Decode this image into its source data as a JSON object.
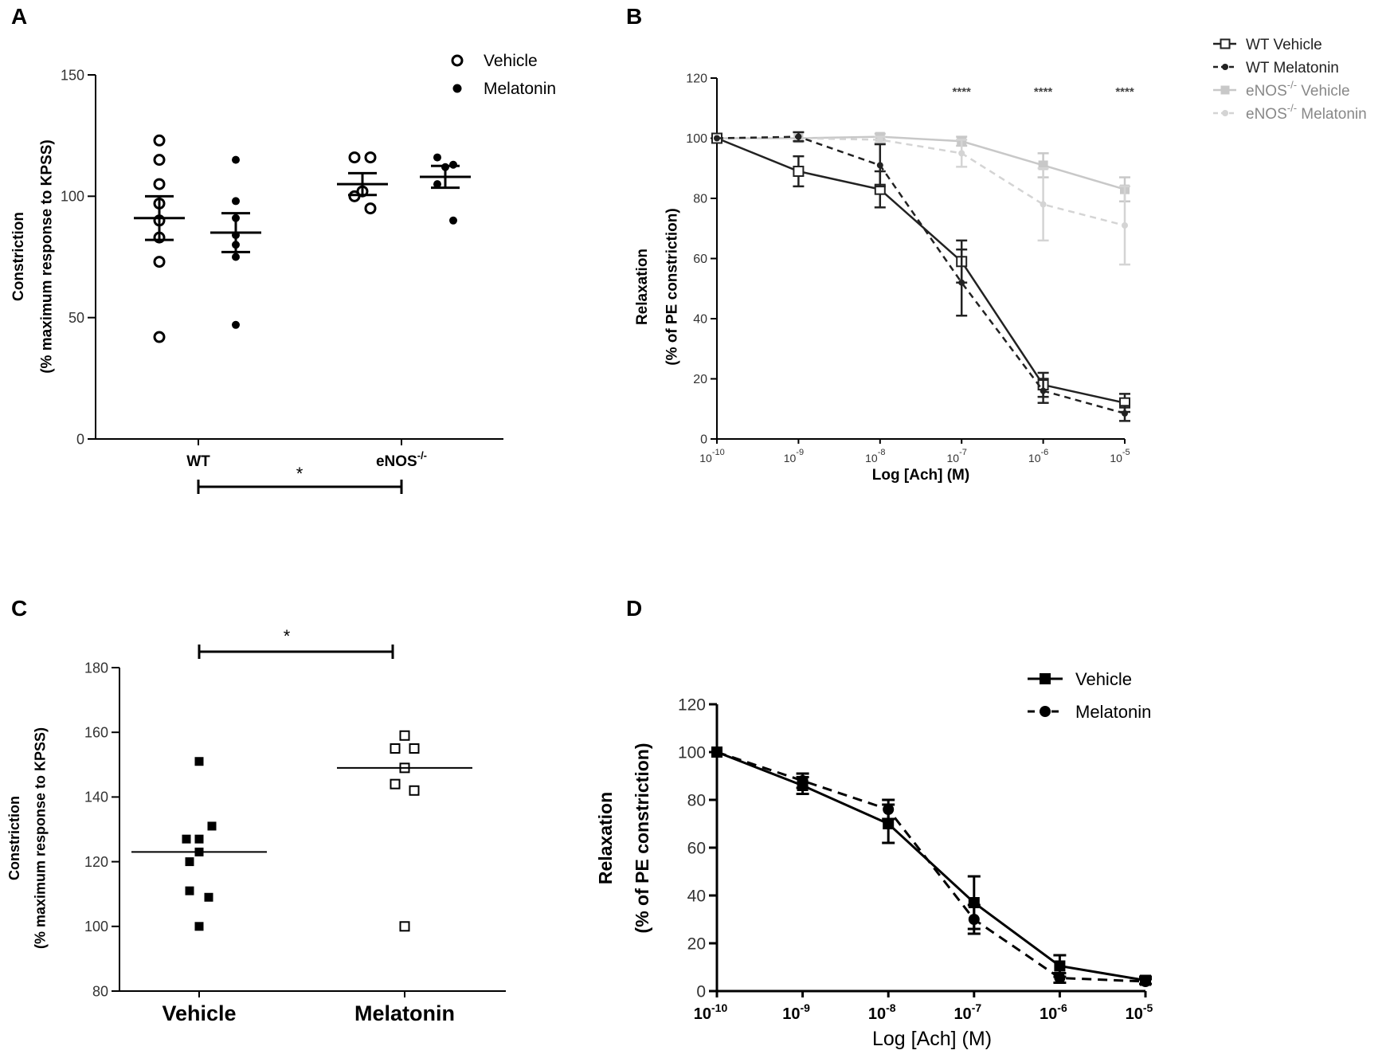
{
  "chart_data": [
    {
      "panel": "A",
      "type": "scatter",
      "ylabel_line1": "Constriction",
      "ylabel_line2": "(% maximum response to KPSS)",
      "ylim": [
        0,
        150
      ],
      "yticks": [
        "0",
        "50",
        "100",
        "150"
      ],
      "categories": [
        {
          "label": "WT",
          "sup": ""
        },
        {
          "label": "eNOS",
          "sup": "-/-"
        }
      ],
      "legend": [
        {
          "name": "Vehicle",
          "marker": "open-circle"
        },
        {
          "name": "Melatonin",
          "marker": "filled-circle"
        }
      ],
      "series": [
        {
          "name": "Vehicle",
          "marker": "open-circle",
          "groups": [
            {
              "category": "WT",
              "values": [
                123,
                115,
                105,
                97,
                90,
                83,
                73,
                42
              ],
              "mean": 91,
              "sem": 9
            },
            {
              "category": "eNOS-/-",
              "values": [
                116,
                116,
                102,
                100,
                95
              ],
              "mean": 105,
              "sem": 4.5
            }
          ]
        },
        {
          "name": "Melatonin",
          "marker": "filled-circle",
          "groups": [
            {
              "category": "WT",
              "values": [
                115,
                98,
                91,
                84,
                80,
                75,
                47
              ],
              "mean": 85,
              "sem": 8
            },
            {
              "category": "eNOS-/-",
              "values": [
                116,
                113,
                112,
                105,
                90
              ],
              "mean": 108,
              "sem": 4.5
            }
          ]
        }
      ],
      "significance": {
        "from": "WT",
        "to": "eNOS-/-",
        "label": "*"
      }
    },
    {
      "panel": "B",
      "type": "line",
      "xlabel": "Log [Ach] (M)",
      "ylabel_line1": "Relaxation",
      "ylabel_line2": "(% of PE constriction)",
      "ylim": [
        0,
        120
      ],
      "yticks": [
        "0",
        "20",
        "40",
        "60",
        "80",
        "100",
        "120"
      ],
      "x_exponents": [
        -10,
        -9,
        -8,
        -7,
        -6,
        -5
      ],
      "xtick_base": "10",
      "xtick_sups": [
        "-10",
        "-9",
        "-8",
        "-7",
        "-6",
        "-5"
      ],
      "series": [
        {
          "name": "WT Vehicle",
          "sup": "",
          "color": "#222222",
          "dashed": false,
          "marker": "open-square",
          "values": [
            100,
            89,
            83,
            59,
            18,
            12
          ],
          "errors": [
            0,
            5,
            6,
            7,
            4,
            3
          ]
        },
        {
          "name": "WT Melatonin",
          "sup": "",
          "color": "#222222",
          "dashed": true,
          "marker": "filled-circle",
          "values": [
            100,
            100.5,
            91,
            52,
            16,
            8.5
          ],
          "errors": [
            0,
            1.5,
            7,
            11,
            4,
            2.5
          ]
        },
        {
          "name": "eNOS Vehicle",
          "sup": "-/-",
          "color": "#c8c8c8",
          "dashed": false,
          "marker": "filled-square",
          "values": [
            100,
            100,
            100.5,
            99,
            91,
            83
          ],
          "errors": [
            0,
            0,
            1,
            1.5,
            4,
            4
          ]
        },
        {
          "name": "eNOS Melatonin",
          "sup": "-/-",
          "color": "#d4d4d4",
          "dashed": true,
          "marker": "filled-circle",
          "values": [
            100,
            100,
            99.5,
            95,
            78,
            71
          ],
          "errors": [
            0,
            0,
            1,
            4.5,
            12,
            13
          ]
        }
      ],
      "legend_labels": [
        {
          "pre": "WT Vehicle",
          "sup": "",
          "post": ""
        },
        {
          "pre": "WT Melatonin",
          "sup": "",
          "post": ""
        },
        {
          "pre": "eNOS",
          "sup": "-/-",
          "post": " Vehicle"
        },
        {
          "pre": "eNOS",
          "sup": "-/-",
          "post": " Melatonin"
        }
      ],
      "annotations": [
        {
          "x_exponent": -7,
          "text": "****"
        },
        {
          "x_exponent": -6,
          "text": "****"
        },
        {
          "x_exponent": -5,
          "text": "****"
        }
      ]
    },
    {
      "panel": "C",
      "type": "scatter",
      "ylabel_line1": "Constriction",
      "ylabel_line2": "(% maximum response to KPSS)",
      "ylim": [
        80,
        180
      ],
      "yticks": [
        "80",
        "100",
        "120",
        "140",
        "160",
        "180"
      ],
      "categories": [
        {
          "label": "Vehicle"
        },
        {
          "label": "Melatonin"
        }
      ],
      "series": [
        {
          "name": "Vehicle",
          "marker": "filled-square",
          "median": 123,
          "points": [
            [
              0,
              151
            ],
            [
              0.4,
              131
            ],
            [
              -0.4,
              127
            ],
            [
              0,
              127
            ],
            [
              0,
              123
            ],
            [
              -0.3,
              120
            ],
            [
              -0.3,
              111
            ],
            [
              0.3,
              109
            ],
            [
              0,
              100
            ]
          ]
        },
        {
          "name": "Melatonin",
          "marker": "open-square",
          "median": 149,
          "points": [
            [
              0,
              159
            ],
            [
              -0.3,
              155
            ],
            [
              0.3,
              155
            ],
            [
              0,
              149
            ],
            [
              -0.3,
              144
            ],
            [
              0.3,
              142
            ],
            [
              0,
              100
            ]
          ]
        }
      ],
      "significance": {
        "from": "Vehicle",
        "to": "Melatonin",
        "label": "*"
      }
    },
    {
      "panel": "D",
      "type": "line",
      "xlabel": "Log [Ach] (M)",
      "ylabel_line1": "Relaxation",
      "ylabel_line2": "(% of PE constriction)",
      "ylim": [
        0,
        120
      ],
      "yticks": [
        "0",
        "20",
        "40",
        "60",
        "80",
        "100",
        "120"
      ],
      "x_exponents": [
        -10,
        -9,
        -8,
        -7,
        -6,
        -5
      ],
      "xtick_base": "10",
      "xtick_sups": [
        "-10",
        "-9",
        "-8",
        "-7",
        "-6",
        "-5"
      ],
      "series": [
        {
          "name": "Vehicle",
          "dashed": false,
          "marker": "filled-square",
          "values": [
            100,
            86,
            70,
            37,
            10.5,
            4.5
          ],
          "errors": [
            0,
            3.5,
            8,
            11,
            4.5,
            1.5
          ]
        },
        {
          "name": "Melatonin",
          "dashed": true,
          "marker": "filled-circle",
          "values": [
            100,
            88,
            76,
            30,
            5.5,
            4
          ],
          "errors": [
            0,
            3,
            4,
            6,
            2,
            1
          ]
        }
      ]
    }
  ]
}
